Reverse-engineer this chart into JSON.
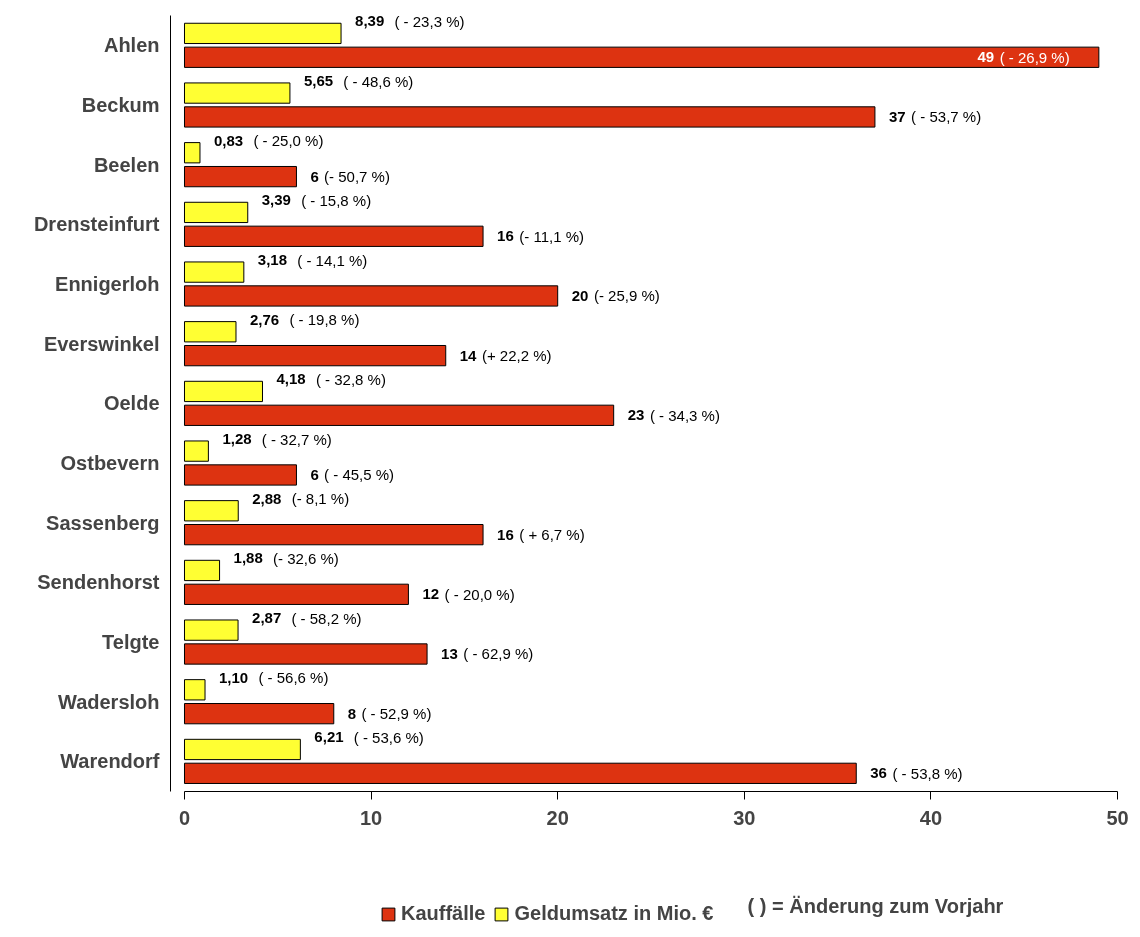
{
  "chart_data": {
    "type": "bar",
    "orientation": "horizontal",
    "categories": [
      "Ahlen",
      "Beckum",
      "Beelen",
      "Drensteinfurt",
      "Ennigerloh",
      "Everswinkel",
      "Oelde",
      "Ostbevern",
      "Sassenberg",
      "Sendenhorst",
      "Telgte",
      "Wadersloh",
      "Warendorf"
    ],
    "series": [
      {
        "name": "Kauffälle",
        "color": "#dd3311",
        "values": [
          49,
          37,
          6,
          16,
          20,
          14,
          23,
          6,
          16,
          12,
          13,
          8,
          36
        ],
        "value_labels": [
          "49 ( - 26,9 %)",
          "37 ( - 53,7 %)",
          "6 (- 50,7 %)",
          "16 (- 11,1 %)",
          "20 (- 25,9 %)",
          "14 (+ 22,2 %)",
          "23 ( - 34,3 %)",
          "6 ( - 45,5 %)",
          "16 ( + 6,7 %)",
          "12  ( - 20,0 %)",
          "13 ( - 62,9 %)",
          "8 ( - 52,9 %)",
          "36 ( - 53,8 %)"
        ]
      },
      {
        "name": "Geldumsatz in Mio. €",
        "color": "#ffff33",
        "values": [
          8.39,
          5.65,
          0.83,
          3.39,
          3.18,
          2.76,
          4.18,
          1.28,
          2.88,
          1.88,
          2.87,
          1.1,
          6.21
        ],
        "value_labels": [
          "8,39 ( - 23,3 %)",
          "5,65 ( - 48,6 %)",
          "0,83 ( - 25,0 %)",
          "3,39 ( - 15,8 %)",
          "3,18 ( - 14,1 %)",
          "2,76 ( - 19,8 %)",
          "4,18 ( - 32,8 %)",
          "1,28 ( - 32,7 %)",
          "2,88 (- 8,1 %)",
          "1,88 (- 32,6 %)",
          "2,87 ( - 58,2 %)",
          "1,10 ( - 56,6 %)",
          "6,21 ( - 53,6 %)"
        ]
      }
    ],
    "xlim": [
      0,
      50
    ],
    "xticks": [
      0,
      10,
      20,
      30,
      40,
      50
    ],
    "grid": false,
    "legend": "bottom",
    "annotations": [
      "( ) = Änderung zum Vorjahr"
    ]
  }
}
